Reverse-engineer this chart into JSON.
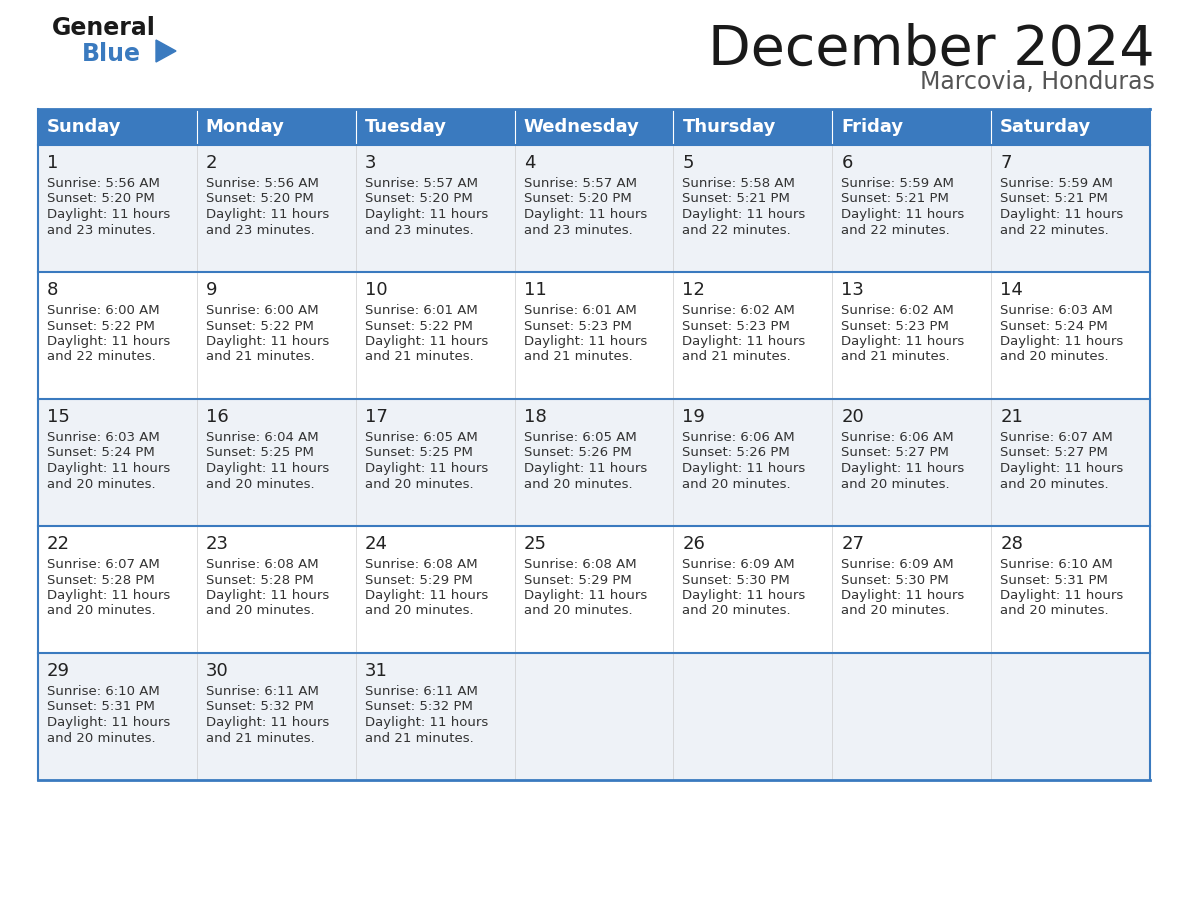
{
  "title": "December 2024",
  "subtitle": "Marcovia, Honduras",
  "header_color": "#3a7abf",
  "header_text_color": "#ffffff",
  "cell_bg_light": "#eef2f7",
  "cell_bg_white": "#ffffff",
  "border_color": "#3a7abf",
  "text_color": "#333333",
  "days_of_week": [
    "Sunday",
    "Monday",
    "Tuesday",
    "Wednesday",
    "Thursday",
    "Friday",
    "Saturday"
  ],
  "weeks": [
    [
      {
        "day": "1",
        "sunrise": "5:56 AM",
        "sunset": "5:20 PM",
        "daylight": "11 hours",
        "daylight2": "and 23 minutes."
      },
      {
        "day": "2",
        "sunrise": "5:56 AM",
        "sunset": "5:20 PM",
        "daylight": "11 hours",
        "daylight2": "and 23 minutes."
      },
      {
        "day": "3",
        "sunrise": "5:57 AM",
        "sunset": "5:20 PM",
        "daylight": "11 hours",
        "daylight2": "and 23 minutes."
      },
      {
        "day": "4",
        "sunrise": "5:57 AM",
        "sunset": "5:20 PM",
        "daylight": "11 hours",
        "daylight2": "and 23 minutes."
      },
      {
        "day": "5",
        "sunrise": "5:58 AM",
        "sunset": "5:21 PM",
        "daylight": "11 hours",
        "daylight2": "and 22 minutes."
      },
      {
        "day": "6",
        "sunrise": "5:59 AM",
        "sunset": "5:21 PM",
        "daylight": "11 hours",
        "daylight2": "and 22 minutes."
      },
      {
        "day": "7",
        "sunrise": "5:59 AM",
        "sunset": "5:21 PM",
        "daylight": "11 hours",
        "daylight2": "and 22 minutes."
      }
    ],
    [
      {
        "day": "8",
        "sunrise": "6:00 AM",
        "sunset": "5:22 PM",
        "daylight": "11 hours",
        "daylight2": "and 22 minutes."
      },
      {
        "day": "9",
        "sunrise": "6:00 AM",
        "sunset": "5:22 PM",
        "daylight": "11 hours",
        "daylight2": "and 21 minutes."
      },
      {
        "day": "10",
        "sunrise": "6:01 AM",
        "sunset": "5:22 PM",
        "daylight": "11 hours",
        "daylight2": "and 21 minutes."
      },
      {
        "day": "11",
        "sunrise": "6:01 AM",
        "sunset": "5:23 PM",
        "daylight": "11 hours",
        "daylight2": "and 21 minutes."
      },
      {
        "day": "12",
        "sunrise": "6:02 AM",
        "sunset": "5:23 PM",
        "daylight": "11 hours",
        "daylight2": "and 21 minutes."
      },
      {
        "day": "13",
        "sunrise": "6:02 AM",
        "sunset": "5:23 PM",
        "daylight": "11 hours",
        "daylight2": "and 21 minutes."
      },
      {
        "day": "14",
        "sunrise": "6:03 AM",
        "sunset": "5:24 PM",
        "daylight": "11 hours",
        "daylight2": "and 20 minutes."
      }
    ],
    [
      {
        "day": "15",
        "sunrise": "6:03 AM",
        "sunset": "5:24 PM",
        "daylight": "11 hours",
        "daylight2": "and 20 minutes."
      },
      {
        "day": "16",
        "sunrise": "6:04 AM",
        "sunset": "5:25 PM",
        "daylight": "11 hours",
        "daylight2": "and 20 minutes."
      },
      {
        "day": "17",
        "sunrise": "6:05 AM",
        "sunset": "5:25 PM",
        "daylight": "11 hours",
        "daylight2": "and 20 minutes."
      },
      {
        "day": "18",
        "sunrise": "6:05 AM",
        "sunset": "5:26 PM",
        "daylight": "11 hours",
        "daylight2": "and 20 minutes."
      },
      {
        "day": "19",
        "sunrise": "6:06 AM",
        "sunset": "5:26 PM",
        "daylight": "11 hours",
        "daylight2": "and 20 minutes."
      },
      {
        "day": "20",
        "sunrise": "6:06 AM",
        "sunset": "5:27 PM",
        "daylight": "11 hours",
        "daylight2": "and 20 minutes."
      },
      {
        "day": "21",
        "sunrise": "6:07 AM",
        "sunset": "5:27 PM",
        "daylight": "11 hours",
        "daylight2": "and 20 minutes."
      }
    ],
    [
      {
        "day": "22",
        "sunrise": "6:07 AM",
        "sunset": "5:28 PM",
        "daylight": "11 hours",
        "daylight2": "and 20 minutes."
      },
      {
        "day": "23",
        "sunrise": "6:08 AM",
        "sunset": "5:28 PM",
        "daylight": "11 hours",
        "daylight2": "and 20 minutes."
      },
      {
        "day": "24",
        "sunrise": "6:08 AM",
        "sunset": "5:29 PM",
        "daylight": "11 hours",
        "daylight2": "and 20 minutes."
      },
      {
        "day": "25",
        "sunrise": "6:08 AM",
        "sunset": "5:29 PM",
        "daylight": "11 hours",
        "daylight2": "and 20 minutes."
      },
      {
        "day": "26",
        "sunrise": "6:09 AM",
        "sunset": "5:30 PM",
        "daylight": "11 hours",
        "daylight2": "and 20 minutes."
      },
      {
        "day": "27",
        "sunrise": "6:09 AM",
        "sunset": "5:30 PM",
        "daylight": "11 hours",
        "daylight2": "and 20 minutes."
      },
      {
        "day": "28",
        "sunrise": "6:10 AM",
        "sunset": "5:31 PM",
        "daylight": "11 hours",
        "daylight2": "and 20 minutes."
      }
    ],
    [
      {
        "day": "29",
        "sunrise": "6:10 AM",
        "sunset": "5:31 PM",
        "daylight": "11 hours",
        "daylight2": "and 20 minutes."
      },
      {
        "day": "30",
        "sunrise": "6:11 AM",
        "sunset": "5:32 PM",
        "daylight": "11 hours",
        "daylight2": "and 21 minutes."
      },
      {
        "day": "31",
        "sunrise": "6:11 AM",
        "sunset": "5:32 PM",
        "daylight": "11 hours",
        "daylight2": "and 21 minutes."
      },
      null,
      null,
      null,
      null
    ]
  ],
  "title_fontsize": 40,
  "subtitle_fontsize": 17,
  "header_fontsize": 13,
  "day_num_fontsize": 13,
  "cell_text_fontsize": 9.5,
  "logo_general_fontsize": 17,
  "logo_blue_fontsize": 17
}
